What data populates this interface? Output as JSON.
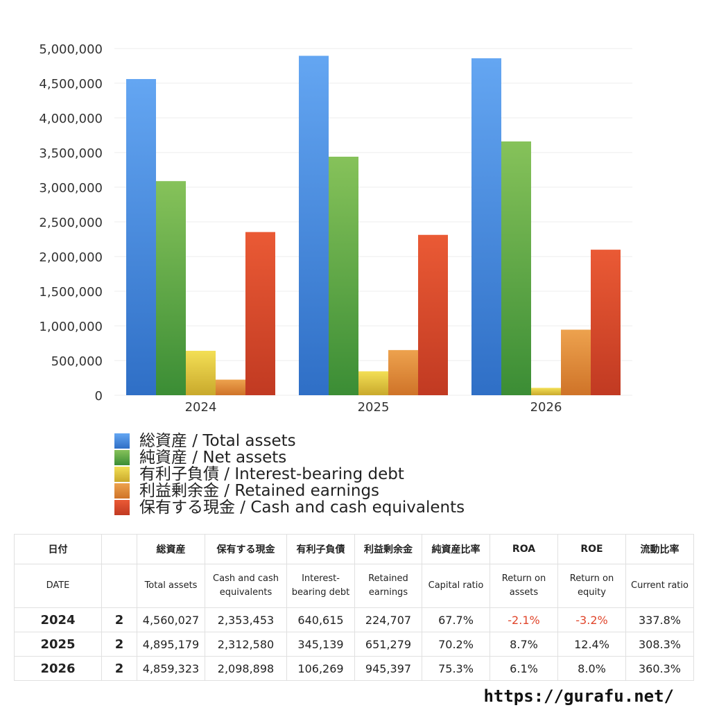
{
  "chart_data": {
    "type": "bar",
    "categories": [
      "2024",
      "2025",
      "2026"
    ],
    "ylim": [
      0,
      5000000
    ],
    "yticks": [
      "0",
      "500,000",
      "1,000,000",
      "1,500,000",
      "2,000,000",
      "2,500,000",
      "3,000,000",
      "3,500,000",
      "4,000,000",
      "4,500,000",
      "5,000,000"
    ],
    "grid": true,
    "legend_position": "bottom",
    "series": [
      {
        "name": "総資産 / Total assets",
        "values": [
          4560027,
          4895179,
          4859323
        ],
        "color_top": "#64a6f2",
        "color_bottom": "#2f6fc6"
      },
      {
        "name": "純資産 / Net assets",
        "values": [
          3088000,
          3440000,
          3660000
        ],
        "color_top": "#86c25a",
        "color_bottom": "#3b8d35"
      },
      {
        "name": "有利子負債 / Interest-bearing debt",
        "values": [
          640615,
          345139,
          106269
        ],
        "color_top": "#f3df55",
        "color_bottom": "#c9a92c"
      },
      {
        "name": "利益剰余金 / Retained earnings",
        "values": [
          224707,
          651279,
          945397
        ],
        "color_top": "#eda24e",
        "color_bottom": "#cf7328"
      },
      {
        "name": "保有する現金 /  Cash and cash equivalents",
        "values": [
          2353453,
          2312580,
          2098898
        ],
        "color_top": "#ea5a35",
        "color_bottom": "#c13a22"
      }
    ]
  },
  "table": {
    "header_jp": [
      "日付",
      "",
      "総資産",
      "保有する現金",
      "有利子負債",
      "利益剰余金",
      "純資産比率",
      "ROA",
      "ROE",
      "流動比率"
    ],
    "header_en": [
      "DATE",
      "",
      "Total assets",
      "Cash and cash equivalents",
      "Interest-bearing debt",
      "Retained earnings",
      "Capital ratio",
      "Return on assets",
      "Return on equity",
      "Current ratio"
    ],
    "rows": [
      [
        "2024",
        "2",
        "4,560,027",
        "2,353,453",
        "640,615",
        "224,707",
        "67.7%",
        "-2.1%",
        "-3.2%",
        "337.8%"
      ],
      [
        "2025",
        "2",
        "4,895,179",
        "2,312,580",
        "345,139",
        "651,279",
        "70.2%",
        "8.7%",
        "12.4%",
        "308.3%"
      ],
      [
        "2026",
        "2",
        "4,859,323",
        "2,098,898",
        "106,269",
        "945,397",
        "75.3%",
        "6.1%",
        "8.0%",
        "360.3%"
      ]
    ],
    "negative_color": "#e0452b"
  },
  "site_url": "https://gurafu.net/"
}
